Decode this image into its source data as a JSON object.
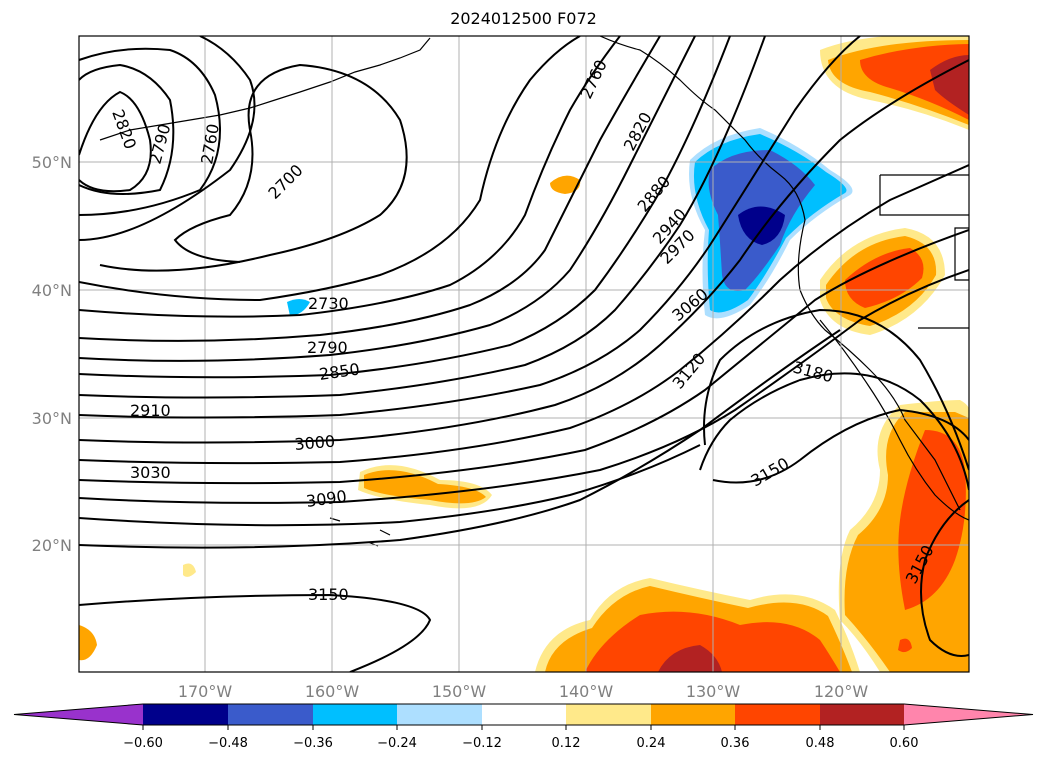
{
  "title": "2024012500 F072",
  "lat_labels": [
    "50°N",
    "40°N",
    "30°N",
    "20°N"
  ],
  "lon_labels": [
    "170°W",
    "160°W",
    "150°W",
    "140°W",
    "130°W",
    "120°W"
  ],
  "contour_labels": [
    "2820",
    "2790",
    "2760",
    "2700",
    "2760",
    "2820",
    "2880",
    "2940",
    "2970",
    "3060",
    "3120",
    "3180",
    "2730",
    "2790",
    "2850",
    "2910",
    "3000",
    "3030",
    "3090",
    "3150",
    "3150",
    "3150"
  ],
  "colorbar": {
    "ticks": [
      "−0.60",
      "−0.48",
      "−0.36",
      "−0.24",
      "−0.12",
      "0.12",
      "0.24",
      "0.36",
      "0.48",
      "0.60"
    ],
    "colors": [
      "#9932CC",
      "#00008B",
      "#3A5BCB",
      "#00BFFF",
      "#ADDFFF",
      "#FFFFFF",
      "#FFE98A",
      "#FFA500",
      "#FF4500",
      "#B22222",
      "#FF85AC"
    ]
  }
}
